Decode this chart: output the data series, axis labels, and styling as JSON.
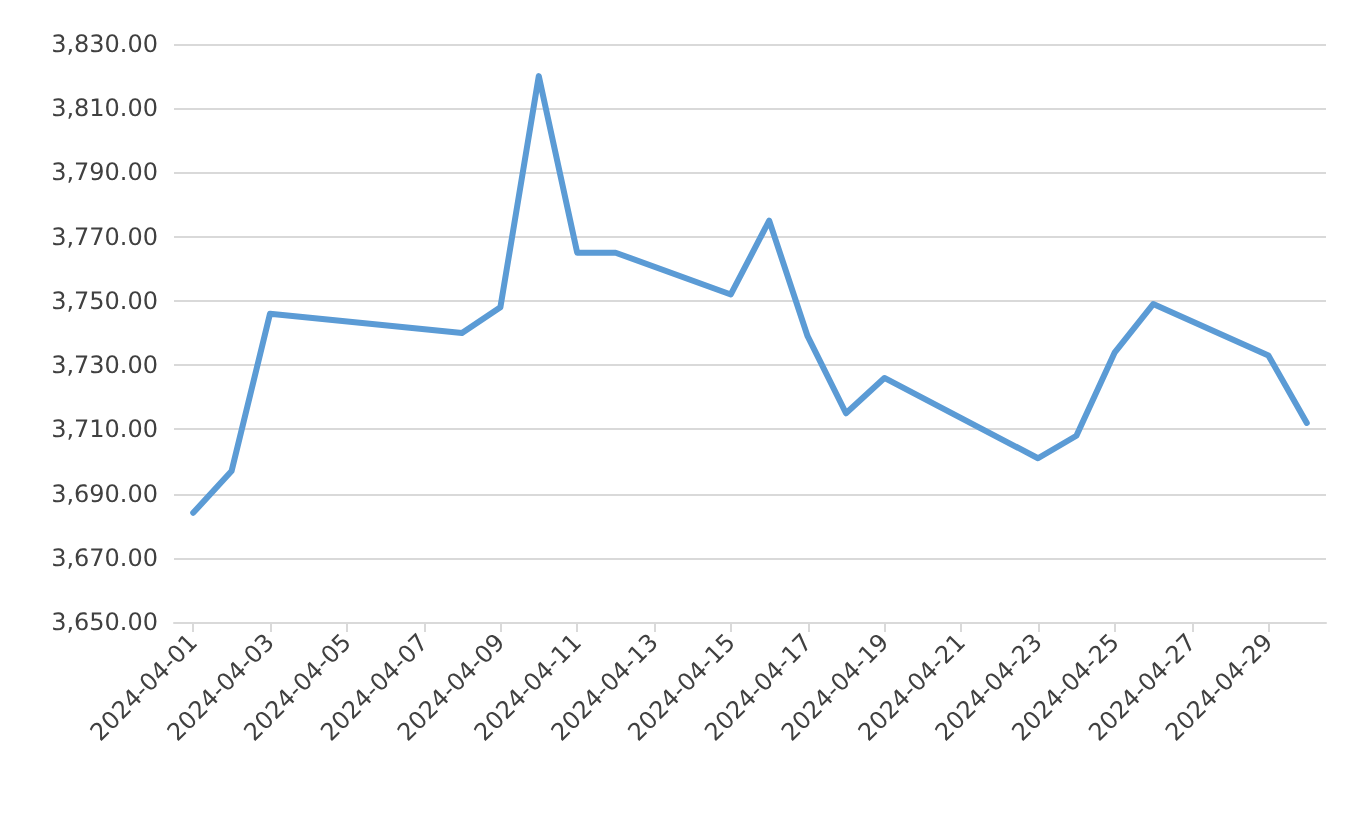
{
  "chart_data": {
    "type": "line",
    "x": [
      "2024-04-01",
      "2024-04-02",
      "2024-04-03",
      "2024-04-08",
      "2024-04-09",
      "2024-04-10",
      "2024-04-11",
      "2024-04-12",
      "2024-04-15",
      "2024-04-16",
      "2024-04-17",
      "2024-04-18",
      "2024-04-19",
      "2024-04-23",
      "2024-04-24",
      "2024-04-25",
      "2024-04-26",
      "2024-04-29",
      "2024-04-30"
    ],
    "series": [
      {
        "color": "#5b9bd5",
        "values": [
          3684,
          3697,
          3746,
          3740,
          3748,
          3820,
          3765,
          3765,
          3752,
          3775,
          3739,
          3715,
          3726,
          3701,
          3708,
          3734,
          3749,
          3733,
          3712
        ]
      }
    ],
    "xlim": [
      "2024-03-31T12:00",
      "2024-04-30T12:00"
    ],
    "xticks": [
      "2024-04-01",
      "2024-04-03",
      "2024-04-05",
      "2024-04-07",
      "2024-04-09",
      "2024-04-11",
      "2024-04-13",
      "2024-04-15",
      "2024-04-17",
      "2024-04-19",
      "2024-04-21",
      "2024-04-23",
      "2024-04-25",
      "2024-04-27",
      "2024-04-29"
    ],
    "ylim": [
      3650,
      3830
    ],
    "yticks": [
      {
        "value": 3650,
        "label": "3,650.00"
      },
      {
        "value": 3670,
        "label": "3,670.00"
      },
      {
        "value": 3690,
        "label": "3,690.00"
      },
      {
        "value": 3710,
        "label": "3,710.00"
      },
      {
        "value": 3730,
        "label": "3,730.00"
      },
      {
        "value": 3750,
        "label": "3,750.00"
      },
      {
        "value": 3770,
        "label": "3,770.00"
      },
      {
        "value": 3790,
        "label": "3,790.00"
      },
      {
        "value": 3810,
        "label": "3,810.00"
      },
      {
        "value": 3830,
        "label": "3,830.00"
      }
    ],
    "grid": "y",
    "marker": "none",
    "line_style": "solid"
  }
}
